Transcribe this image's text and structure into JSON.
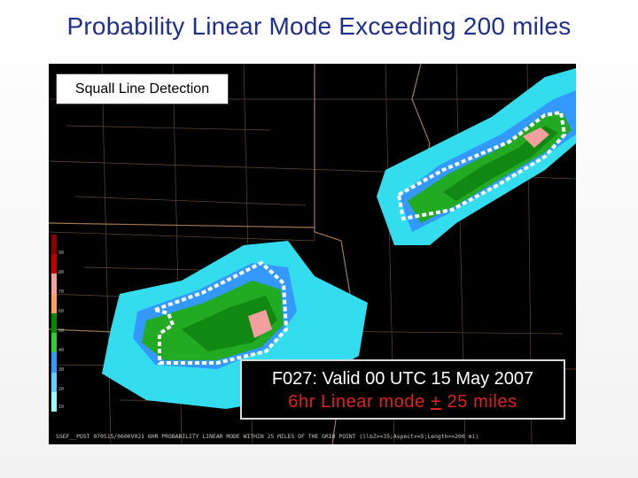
{
  "title": "Probability Linear Mode Exceeding 200 miles",
  "detection_label": "Squall Line Detection",
  "valid_box": {
    "line1": "F027: Valid 00 UTC 15 May 2007",
    "line2_prefix": "6hr Linear mode ",
    "line2_pm": "+",
    "line2_suffix": " 25 miles"
  },
  "footer": "SSEF__POST 070515/0600V021 6HR PROBABILITY LINEAR MODE WITHIN 25 MILES OF THE GRID POINT (llbZ>=35;Aspect>=5;Length>=200 mi)",
  "colorbar": {
    "ticks": [
      "90",
      "80",
      "70",
      "60",
      "50",
      "40",
      "30",
      "20",
      "10"
    ],
    "colors": [
      "#8b0000",
      "#c00000",
      "#f4a0a0",
      "#ffa060",
      "#008a00",
      "#33cc33",
      "#3399ff",
      "#66ccff",
      "#99ffff"
    ]
  },
  "colors": {
    "title": "#1f2f8a",
    "low_prob": "#33ddee",
    "mid_prob": "#3399ff",
    "high_prob": "#22aa22",
    "very_high_prob": "#118811",
    "max_prob": "#f4a0a0",
    "outline": "#ffffff"
  }
}
